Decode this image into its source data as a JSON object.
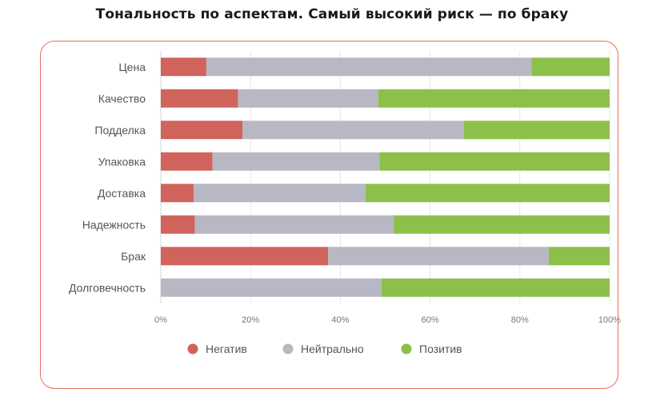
{
  "title": "Тональность по аспектам. Самый высокий риск — по браку",
  "chart_data": {
    "type": "bar",
    "orientation": "horizontal",
    "stacked": true,
    "categories": [
      "Цена",
      "Качество",
      "Подделка",
      "Упаковка",
      "Доставка",
      "Надежность",
      "Брак",
      "Долговечность"
    ],
    "series": [
      {
        "name": "Негатив",
        "color": "#d0645d",
        "values": [
          7,
          11,
          14,
          9,
          5,
          6,
          22,
          0
        ]
      },
      {
        "name": "Нейтрально",
        "color": "#b7b8c3",
        "values": [
          50,
          20,
          38,
          29,
          26,
          35,
          29,
          29
        ]
      },
      {
        "name": "Позитив",
        "color": "#8cc04a",
        "values": [
          12,
          33,
          25,
          40,
          37,
          38,
          8,
          30
        ]
      }
    ],
    "normalized": true,
    "xlim": [
      0,
      100
    ],
    "x_ticks": [
      "0%",
      "20%",
      "40%",
      "60%",
      "80%",
      "100%"
    ],
    "grid": true,
    "legend": "bottom"
  }
}
